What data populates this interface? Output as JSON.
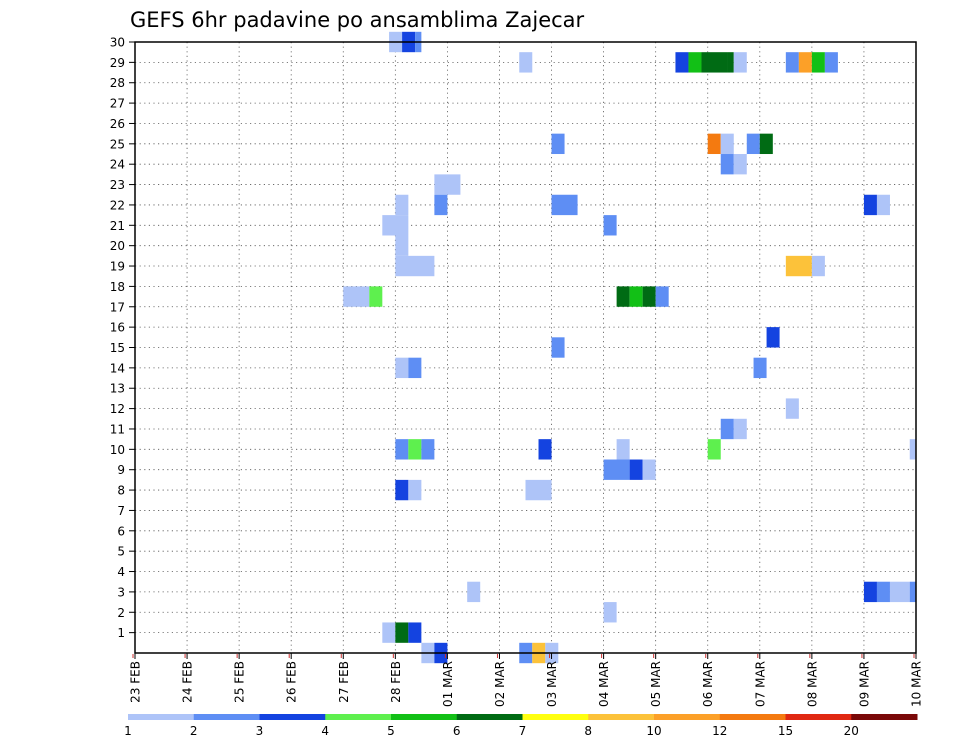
{
  "chart_data": {
    "type": "heatmap",
    "title": "GEFS 6hr padavine po ansamblima Zajecar",
    "xlabel": "",
    "ylabel": "",
    "x_tick_labels": [
      "23 FEB",
      "24 FEB",
      "25 FEB",
      "26 FEB",
      "27 FEB",
      "28 FEB",
      "01 MAR",
      "02 MAR",
      "03 MAR",
      "04 MAR",
      "05 MAR",
      "06 MAR",
      "07 MAR",
      "08 MAR",
      "09 MAR",
      "10 MAR"
    ],
    "xlim_days": [
      0,
      15
    ],
    "ylim": [
      0,
      30
    ],
    "y_ticks": [
      1,
      2,
      3,
      4,
      5,
      6,
      7,
      8,
      9,
      10,
      11,
      12,
      13,
      14,
      15,
      16,
      17,
      18,
      19,
      20,
      21,
      22,
      23,
      24,
      25,
      26,
      27,
      28,
      29,
      30
    ],
    "grid": true,
    "legend_position": "bottom",
    "legend_labels": [
      "1",
      "2",
      "3",
      "4",
      "5",
      "6",
      "7",
      "8",
      "10",
      "12",
      "15",
      "20"
    ],
    "legend_colors": [
      "#aec4f8",
      "#5e8ef4",
      "#1443e0",
      "#5ef04e",
      "#12c016",
      "#006b14",
      "#ffff10",
      "#fcc23a",
      "#fca028",
      "#f47a10",
      "#e02812",
      "#7a0808"
    ],
    "cells": [
      {
        "member": 30,
        "t": [
          4.88,
          5.13
        ],
        "c": 0
      },
      {
        "member": 30,
        "t": [
          5.13,
          5.38
        ],
        "c": 2
      },
      {
        "member": 30,
        "t": [
          5.38,
          5.5
        ],
        "c": 1
      },
      {
        "member": 29,
        "t": [
          7.38,
          7.63
        ],
        "c": 0
      },
      {
        "member": 29,
        "t": [
          10.38,
          10.63
        ],
        "c": 2
      },
      {
        "member": 29,
        "t": [
          10.63,
          10.88
        ],
        "c": 4
      },
      {
        "member": 29,
        "t": [
          10.88,
          11.38
        ],
        "c": 5
      },
      {
        "member": 29,
        "t": [
          11.38,
          11.5
        ],
        "c": 5
      },
      {
        "member": 29,
        "t": [
          11.5,
          11.75
        ],
        "c": 0
      },
      {
        "member": 29,
        "t": [
          12.5,
          12.75
        ],
        "c": 1
      },
      {
        "member": 29,
        "t": [
          12.75,
          13.0
        ],
        "c": 8
      },
      {
        "member": 29,
        "t": [
          13.0,
          13.25
        ],
        "c": 4
      },
      {
        "member": 29,
        "t": [
          13.25,
          13.5
        ],
        "c": 1
      },
      {
        "member": 25,
        "t": [
          8.0,
          8.25
        ],
        "c": 1
      },
      {
        "member": 25,
        "t": [
          11.0,
          11.25
        ],
        "c": 9
      },
      {
        "member": 25,
        "t": [
          11.25,
          11.5
        ],
        "c": 0
      },
      {
        "member": 25,
        "t": [
          11.75,
          12.0
        ],
        "c": 1
      },
      {
        "member": 25,
        "t": [
          12.0,
          12.25
        ],
        "c": 5
      },
      {
        "member": 24,
        "t": [
          11.25,
          11.5
        ],
        "c": 1
      },
      {
        "member": 24,
        "t": [
          11.5,
          11.75
        ],
        "c": 0
      },
      {
        "member": 23,
        "t": [
          5.75,
          6.25
        ],
        "c": 0
      },
      {
        "member": 22,
        "t": [
          5.0,
          5.25
        ],
        "c": 0
      },
      {
        "member": 22,
        "t": [
          5.75,
          6.0
        ],
        "c": 1
      },
      {
        "member": 22,
        "t": [
          8.0,
          8.5
        ],
        "c": 1
      },
      {
        "member": 22,
        "t": [
          14.0,
          14.25
        ],
        "c": 2
      },
      {
        "member": 22,
        "t": [
          14.25,
          14.5
        ],
        "c": 0
      },
      {
        "member": 21,
        "t": [
          4.75,
          5.25
        ],
        "c": 0
      },
      {
        "member": 21,
        "t": [
          9.0,
          9.25
        ],
        "c": 1
      },
      {
        "member": 20,
        "t": [
          5.0,
          5.25
        ],
        "c": 0
      },
      {
        "member": 19,
        "t": [
          5.0,
          5.75
        ],
        "c": 0
      },
      {
        "member": 19,
        "t": [
          12.5,
          13.0
        ],
        "c": 7
      },
      {
        "member": 19,
        "t": [
          13.0,
          13.25
        ],
        "c": 0
      },
      {
        "member": 17.5,
        "t": [
          4.0,
          4.5
        ],
        "c": 0
      },
      {
        "member": 17.5,
        "t": [
          4.5,
          4.75
        ],
        "c": 3
      },
      {
        "member": 17.5,
        "t": [
          9.25,
          9.5
        ],
        "c": 5
      },
      {
        "member": 17.5,
        "t": [
          9.5,
          9.75
        ],
        "c": 4
      },
      {
        "member": 17.5,
        "t": [
          9.75,
          10.0
        ],
        "c": 5
      },
      {
        "member": 17.5,
        "t": [
          10.0,
          10.25
        ],
        "c": 1
      },
      {
        "member": 15.5,
        "t": [
          12.13,
          12.38
        ],
        "c": 2
      },
      {
        "member": 15,
        "t": [
          8.0,
          8.25
        ],
        "c": 1
      },
      {
        "member": 14,
        "t": [
          5.0,
          5.25
        ],
        "c": 0
      },
      {
        "member": 14,
        "t": [
          5.25,
          5.5
        ],
        "c": 1
      },
      {
        "member": 14,
        "t": [
          11.88,
          12.13
        ],
        "c": 1
      },
      {
        "member": 12,
        "t": [
          12.5,
          12.75
        ],
        "c": 0
      },
      {
        "member": 11,
        "t": [
          11.25,
          11.5
        ],
        "c": 1
      },
      {
        "member": 11,
        "t": [
          11.5,
          11.75
        ],
        "c": 0
      },
      {
        "member": 10,
        "t": [
          5.0,
          5.25
        ],
        "c": 1
      },
      {
        "member": 10,
        "t": [
          5.25,
          5.5
        ],
        "c": 3
      },
      {
        "member": 10,
        "t": [
          5.5,
          5.75
        ],
        "c": 1
      },
      {
        "member": 10,
        "t": [
          7.75,
          8.0
        ],
        "c": 2
      },
      {
        "member": 10,
        "t": [
          9.25,
          9.5
        ],
        "c": 0
      },
      {
        "member": 10,
        "t": [
          11.0,
          11.25
        ],
        "c": 3
      },
      {
        "member": 10,
        "t": [
          14.88,
          15.0
        ],
        "c": 0
      },
      {
        "member": 9,
        "t": [
          9.0,
          9.5
        ],
        "c": 1
      },
      {
        "member": 9,
        "t": [
          9.5,
          9.75
        ],
        "c": 2
      },
      {
        "member": 9,
        "t": [
          9.75,
          10.0
        ],
        "c": 0
      },
      {
        "member": 8,
        "t": [
          5.0,
          5.25
        ],
        "c": 2
      },
      {
        "member": 8,
        "t": [
          5.25,
          5.5
        ],
        "c": 0
      },
      {
        "member": 8,
        "t": [
          7.5,
          8.0
        ],
        "c": 0
      },
      {
        "member": 3,
        "t": [
          6.38,
          6.63
        ],
        "c": 0
      },
      {
        "member": 3,
        "t": [
          14.0,
          14.25
        ],
        "c": 2
      },
      {
        "member": 3,
        "t": [
          14.25,
          14.5
        ],
        "c": 1
      },
      {
        "member": 3,
        "t": [
          14.5,
          14.88
        ],
        "c": 0
      },
      {
        "member": 3,
        "t": [
          14.88,
          15.0
        ],
        "c": 1
      },
      {
        "member": 2,
        "t": [
          9.0,
          9.25
        ],
        "c": 0
      },
      {
        "member": 1,
        "t": [
          4.75,
          5.0
        ],
        "c": 0
      },
      {
        "member": 1,
        "t": [
          5.0,
          5.25
        ],
        "c": 5
      },
      {
        "member": 1,
        "t": [
          5.25,
          5.5
        ],
        "c": 2
      },
      {
        "member": 0,
        "t": [
          5.5,
          5.75
        ],
        "c": 0
      },
      {
        "member": 0,
        "t": [
          5.75,
          6.0
        ],
        "c": 2
      },
      {
        "member": 0,
        "t": [
          7.38,
          7.63
        ],
        "c": 1
      },
      {
        "member": 0,
        "t": [
          7.63,
          7.88
        ],
        "c": 7
      },
      {
        "member": 0,
        "t": [
          7.88,
          8.13
        ],
        "c": 0
      }
    ]
  }
}
